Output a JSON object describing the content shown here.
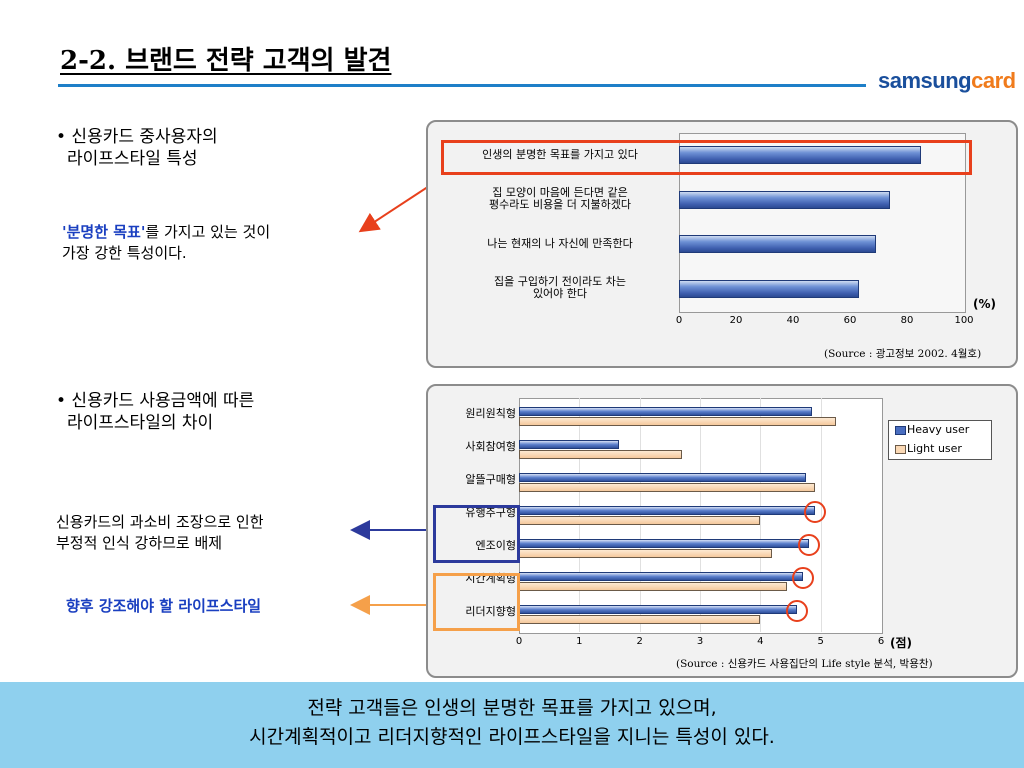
{
  "header": {
    "title": "2-2. 브랜드 전략 고객의 발견",
    "logo_part1": "samsung",
    "logo_part2": "card"
  },
  "section1": {
    "bullet": "• 신용카드 중사용자의",
    "bullet_line2": "라이프스타일 특성",
    "note_highlight": "'분명한 목표'",
    "note_rest": "를 가지고 있는 것이",
    "note_line2": "가장 강한 특성이다."
  },
  "section2": {
    "bullet": "• 신용카드 사용금액에 따른",
    "bullet_line2": "라이프스타일의 차이",
    "note1_line1": "신용카드의 과소비 조장으로 인한",
    "note1_line2": "부정적 인식 강하므로 배제",
    "note2": "향후 강조해야 할 라이프스타일"
  },
  "chart_data": [
    {
      "type": "bar",
      "orientation": "horizontal",
      "categories": [
        "인생의 분명한 목표를 가지고 있다",
        "집 모양이 마음에 든다면 같은 평수라도 비용을 더 지불하겠다",
        "나는 현재의 나 자신에 만족한다",
        "집을 구입하기 전이라도 차는 있어야 한다"
      ],
      "category_lines": [
        [
          "인생의 분명한 목표를 가지고 있다"
        ],
        [
          "집 모양이 마음에 든다면 같은",
          "평수라도 비용을 더 지불하겠다"
        ],
        [
          "나는 현재의 나 자신에 만족한다"
        ],
        [
          "집을 구입하기 전이라도 차는",
          "있어야 한다"
        ]
      ],
      "values": [
        85,
        74,
        69,
        63
      ],
      "xlim": [
        0,
        100
      ],
      "xticks": [
        "0",
        "20",
        "40",
        "60",
        "80",
        "100"
      ],
      "unit": "(%)",
      "source": "(Source : 광고정보 2002. 4월호)",
      "highlight_color": "#e8401c"
    },
    {
      "type": "bar",
      "orientation": "horizontal",
      "categories": [
        "원리원칙형",
        "사회참여형",
        "알뜰구매형",
        "유행추구형",
        "엔조이형",
        "시간계획형",
        "리더지향형"
      ],
      "series": [
        {
          "name": "Heavy user",
          "values": [
            4.85,
            1.65,
            4.75,
            4.9,
            4.8,
            4.7,
            4.6
          ],
          "color": "#4a6ec0"
        },
        {
          "name": "Light user",
          "values": [
            5.25,
            2.7,
            4.9,
            4.0,
            4.2,
            4.45,
            4.0
          ],
          "color": "#fbd9b5"
        }
      ],
      "xlim": [
        0,
        6
      ],
      "xticks": [
        "0",
        "1",
        "2",
        "3",
        "4",
        "5",
        "6"
      ],
      "unit": "(점)",
      "legend_position": "top-right",
      "source": "(Source : 신용카드 사용집단의 Life style 분석, 박용찬)",
      "circled_categories": [
        "유행추구형",
        "엔조이형",
        "시간계획형",
        "리더지향형"
      ],
      "box_blue_categories": [
        "유행추구형",
        "엔조이형"
      ],
      "box_orange_categories": [
        "시간계획형",
        "리더지향형"
      ],
      "colors": {
        "blue_box": "#2c3a9c",
        "orange_box": "#f5a04a",
        "circle": "#e8401c"
      }
    }
  ],
  "footer": {
    "line1": "전략 고객들은 인생의 분명한 목표를 가지고 있으며,",
    "line2": "시간계획적이고 리더지향적인 라이프스타일을 지니는 특성이 있다."
  }
}
